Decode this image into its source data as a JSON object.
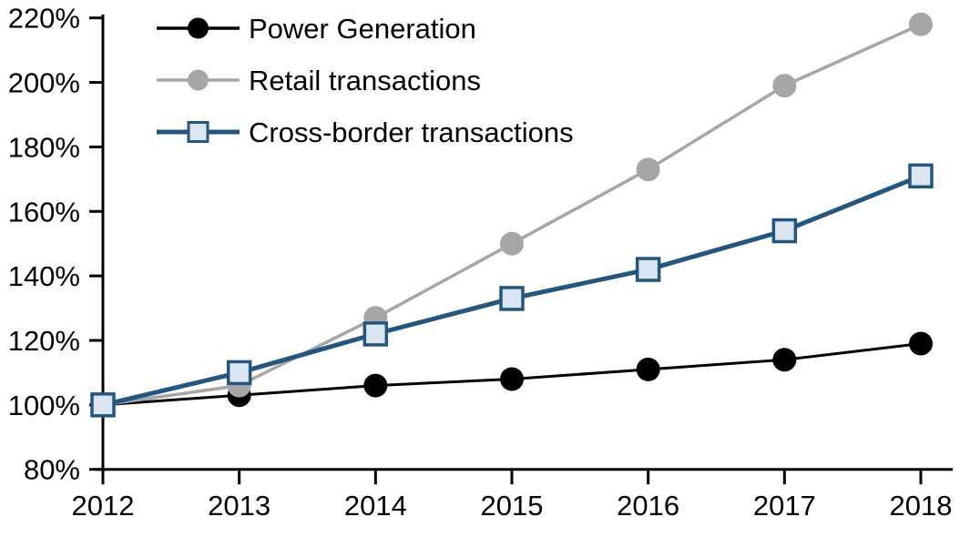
{
  "chart_data": {
    "type": "line",
    "title": "",
    "xlabel": "",
    "ylabel": "",
    "categories": [
      "2012",
      "2013",
      "2014",
      "2015",
      "2016",
      "2017",
      "2018"
    ],
    "y_axis": {
      "min": 80,
      "max": 220,
      "step": 20,
      "suffix": "%",
      "tick_labels": [
        "80%",
        "100%",
        "120%",
        "140%",
        "160%",
        "180%",
        "200%",
        "220%"
      ]
    },
    "grid": false,
    "legend_position": "top-left-inside",
    "series": [
      {
        "name": "Power Generation",
        "values": [
          100,
          103,
          106,
          108,
          111,
          114,
          119
        ],
        "color": "#000000",
        "marker": "circle",
        "marker_fill": "#000000",
        "line_width": 3
      },
      {
        "name": "Retail transactions",
        "values": [
          100,
          106,
          127,
          150,
          173,
          199,
          218
        ],
        "color": "#A6A6A6",
        "marker": "circle",
        "marker_fill": "#A6A6A6",
        "line_width": 3.5
      },
      {
        "name": "Cross-border transactions",
        "values": [
          100,
          110,
          122,
          133,
          142,
          154,
          171
        ],
        "color": "#25567E",
        "marker": "square",
        "marker_fill": "#DCE6F2",
        "line_width": 5
      }
    ]
  },
  "colors": {
    "background": "#FFFFFF",
    "axis": "#000000",
    "text": "#000000"
  }
}
